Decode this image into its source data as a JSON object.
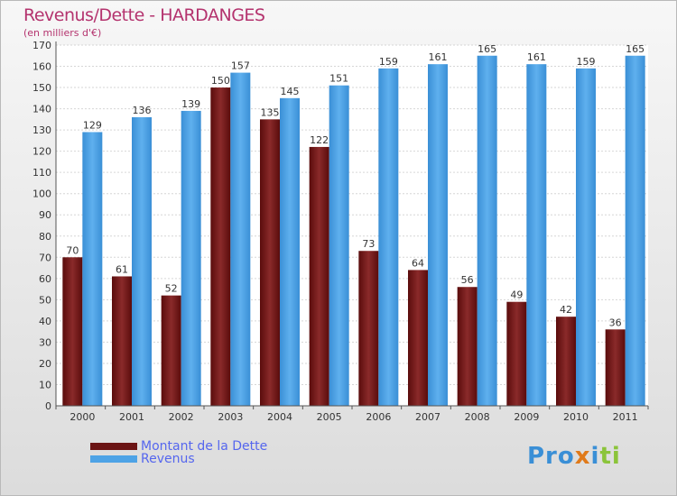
{
  "title": "Revenus/Dette - HARDANGES",
  "subtitle": "(en milliers d'€)",
  "logo": "Proxiti",
  "colors": {
    "title": "#b4336e",
    "debt": "#7a1e1e",
    "revenue": "#4ea3e6",
    "legend_text": "#5566ee"
  },
  "chart_data": {
    "type": "bar",
    "title": "Revenus/Dette - HARDANGES",
    "ylabel": "(en milliers d'€)",
    "categories": [
      "2000",
      "2001",
      "2002",
      "2003",
      "2004",
      "2005",
      "2006",
      "2007",
      "2008",
      "2009",
      "2010",
      "2011"
    ],
    "series": [
      {
        "name": "Montant de la Dette",
        "values": [
          70,
          61,
          52,
          150,
          135,
          122,
          73,
          64,
          56,
          49,
          42,
          36
        ]
      },
      {
        "name": "Revenus",
        "values": [
          129,
          136,
          139,
          157,
          145,
          151,
          159,
          161,
          165,
          161,
          159,
          165
        ]
      }
    ],
    "ylim": [
      0,
      170
    ],
    "yticks": [
      0,
      10,
      20,
      30,
      40,
      50,
      60,
      70,
      80,
      90,
      100,
      110,
      120,
      130,
      140,
      150,
      160,
      170
    ],
    "grid": true,
    "legend_position": "bottom-left"
  },
  "legend": {
    "debt_label": "Montant de la Dette",
    "revenue_label": "Revenus"
  }
}
